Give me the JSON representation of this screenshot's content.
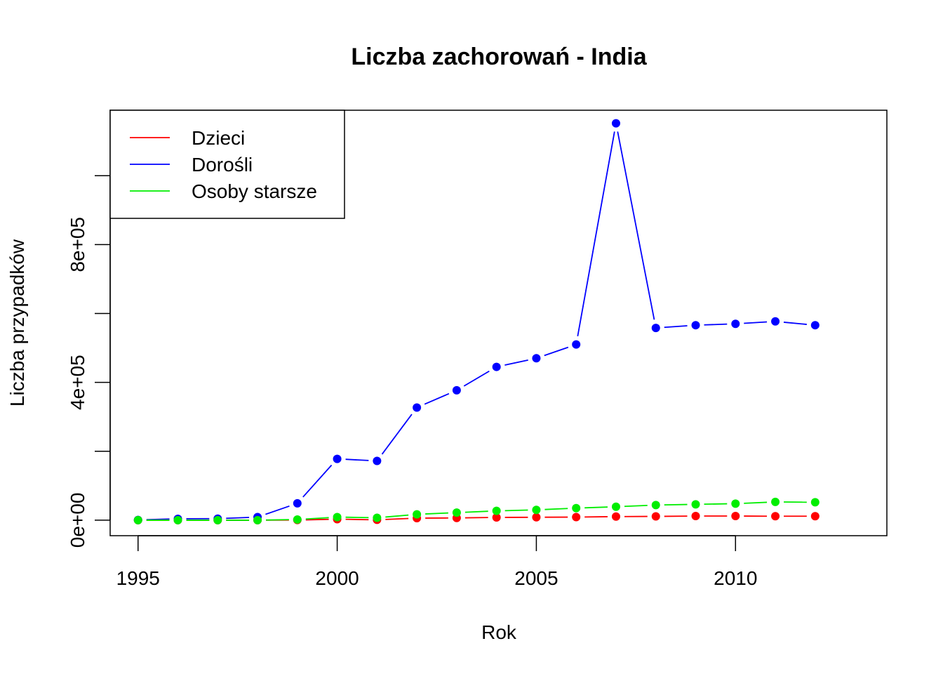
{
  "chart_data": {
    "type": "line",
    "title": "Liczba zachorowań -  India",
    "xlabel": "Rok",
    "ylabel": "Liczba przypadków",
    "x": [
      1995,
      1996,
      1997,
      1998,
      1999,
      2000,
      2001,
      2002,
      2003,
      2004,
      2005,
      2006,
      2007,
      2008,
      2009,
      2010,
      2011,
      2012
    ],
    "xlim": [
      1994.3,
      2013.8
    ],
    "ylim": [
      -45000,
      1190000
    ],
    "x_ticks": [
      "1995",
      "2000",
      "2005",
      "2010"
    ],
    "x_tick_values": [
      1995,
      2000,
      2005,
      2010
    ],
    "y_ticks": [
      "0e+00",
      "",
      "4e+05",
      "",
      "8e+05",
      ""
    ],
    "y_tick_values": [
      0,
      200000,
      400000,
      600000,
      800000,
      1000000
    ],
    "grid": false,
    "legend_position": "top-left",
    "series": [
      {
        "name": "Dzieci",
        "color": "#ff0000",
        "values": [
          0,
          0,
          0,
          0,
          500,
          3000,
          1000,
          6000,
          6500,
          8000,
          8500,
          9000,
          10500,
          11000,
          12000,
          12000,
          11500,
          11500
        ]
      },
      {
        "name": "Dorośli",
        "color": "#0000ff",
        "values": [
          500,
          4000,
          4500,
          9000,
          49000,
          178000,
          172000,
          327000,
          377000,
          445000,
          470000,
          510000,
          1152000,
          558000,
          566000,
          570000,
          577000,
          566000
        ]
      },
      {
        "name": "Osoby starsze",
        "color": "#00ee00",
        "values": [
          0,
          0,
          0,
          0,
          2000,
          9000,
          7000,
          17000,
          22000,
          27000,
          30000,
          35000,
          39000,
          44000,
          46000,
          48000,
          53000,
          52000
        ]
      }
    ]
  }
}
